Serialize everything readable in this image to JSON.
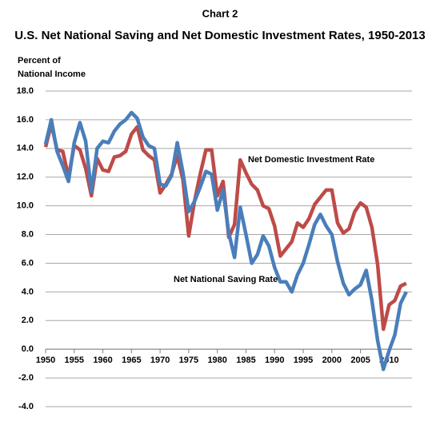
{
  "chart_data": {
    "type": "line",
    "subtitle": "Chart 2",
    "title": "U.S. Net National Saving and Net Domestic Investment Rates, 1950-2013",
    "ylabel": [
      "Percent of",
      "National Income"
    ],
    "x": [
      1950,
      1951,
      1952,
      1953,
      1954,
      1955,
      1956,
      1957,
      1958,
      1959,
      1960,
      1961,
      1962,
      1963,
      1964,
      1965,
      1966,
      1967,
      1968,
      1969,
      1970,
      1971,
      1972,
      1973,
      1974,
      1975,
      1976,
      1977,
      1978,
      1979,
      1980,
      1981,
      1982,
      1983,
      1984,
      1985,
      1986,
      1987,
      1988,
      1989,
      1990,
      1991,
      1992,
      1993,
      1994,
      1995,
      1996,
      1997,
      1998,
      1999,
      2000,
      2001,
      2002,
      2003,
      2004,
      2005,
      2006,
      2007,
      2008,
      2009,
      2010,
      2011,
      2012,
      2013
    ],
    "xlim": [
      1950,
      2014
    ],
    "xticks": [
      1950,
      1955,
      1960,
      1965,
      1970,
      1975,
      1980,
      1985,
      1990,
      1995,
      2000,
      2005,
      2010
    ],
    "ylim": [
      -4,
      18
    ],
    "yticks": [
      {
        "value": -4,
        "label": "-4.0"
      },
      {
        "value": -2,
        "label": "-2.0"
      },
      {
        "value": 0,
        "label": "0.0"
      },
      {
        "value": 2,
        "label": "2.0"
      },
      {
        "value": 4,
        "label": "4.0"
      },
      {
        "value": 6,
        "label": "6.0"
      },
      {
        "value": 8,
        "label": "8.0"
      },
      {
        "value": 10,
        "label": "10.0"
      },
      {
        "value": 12,
        "label": "12.0"
      },
      {
        "value": 14,
        "label": "14.0"
      },
      {
        "value": 16,
        "label": "16.0"
      },
      {
        "value": 18,
        "label": "18.0"
      }
    ],
    "grid": true,
    "series": [
      {
        "name": "Net Domestic Investment Rate",
        "color": "#be4b48",
        "values": [
          14.1,
          15.7,
          13.9,
          13.8,
          12.0,
          14.2,
          13.9,
          12.6,
          10.7,
          13.3,
          12.5,
          12.4,
          13.4,
          13.5,
          13.8,
          15.0,
          15.5,
          13.9,
          13.5,
          13.2,
          10.9,
          11.5,
          12.2,
          13.5,
          11.8,
          7.9,
          10.3,
          12.2,
          13.9,
          13.9,
          10.7,
          11.7,
          7.8,
          8.7,
          13.2,
          12.3,
          11.5,
          11.1,
          10.0,
          9.8,
          8.6,
          6.5,
          7.0,
          7.5,
          8.8,
          8.5,
          9.1,
          10.1,
          10.6,
          11.1,
          11.1,
          8.8,
          8.1,
          8.4,
          9.6,
          10.2,
          9.9,
          8.5,
          5.9,
          1.4,
          3.1,
          3.4,
          4.4,
          4.6
        ]
      },
      {
        "name": "Net National Saving Rate",
        "color": "#4a7ebb",
        "values": [
          14.3,
          16.0,
          13.8,
          12.8,
          11.7,
          14.4,
          15.8,
          14.5,
          11.0,
          14.0,
          14.5,
          14.4,
          15.2,
          15.7,
          16.0,
          16.5,
          16.1,
          14.8,
          14.2,
          14.0,
          11.5,
          11.4,
          12.1,
          14.4,
          12.3,
          9.6,
          10.3,
          11.3,
          12.4,
          12.2,
          9.7,
          11.1,
          8.1,
          6.4,
          9.9,
          8.0,
          6.0,
          6.6,
          7.9,
          7.2,
          5.7,
          4.7,
          4.7,
          4.0,
          5.2,
          6.0,
          7.3,
          8.7,
          9.4,
          8.6,
          8.0,
          6.1,
          4.6,
          3.8,
          4.2,
          4.5,
          5.5,
          3.4,
          0.6,
          -1.4,
          -0.1,
          1.0,
          3.2,
          4.0
        ]
      }
    ]
  }
}
